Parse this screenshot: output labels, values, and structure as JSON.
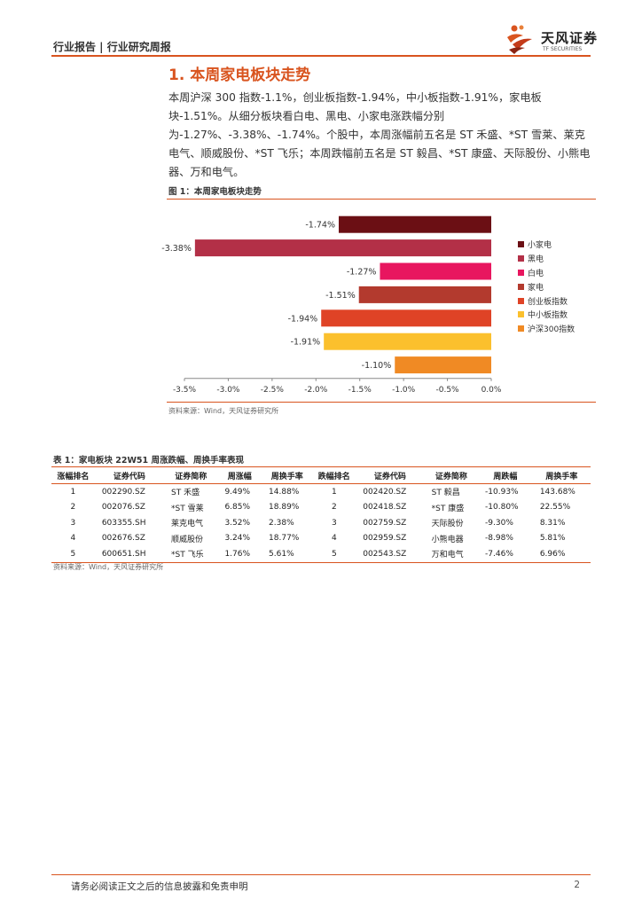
{
  "header": {
    "left_text": "行业报告 | 行业研究周报",
    "logo_cn": "天风证券",
    "logo_en": "TF SECURITIES"
  },
  "section": {
    "title": "1. 本周家电板块走势",
    "paragraph": "本周沪深 300 指数-1.1%，创业板指数-1.94%，中小板指数-1.91%，家电板块-1.51%。从细分板块看白电、黑电、小家电涨跌幅分别为-1.27%、-3.38%、-1.74%。个股中，本周涨幅前五名是 ST 禾盛、*ST 雪莱、莱克电气、顺威股份、*ST 飞乐；本周跌幅前五名是 ST 毅昌、*ST 康盛、天际股份、小熊电器、万和电气。"
  },
  "figure": {
    "title": "图 1：本周家电板块走势",
    "source": "资料来源：Wind，天风证券研究所"
  },
  "chart_data": {
    "type": "bar",
    "orientation": "horizontal",
    "categories": [
      "小家电",
      "黑电",
      "白电",
      "家电",
      "创业板指数",
      "中小板指数",
      "沪深300指数"
    ],
    "values": [
      -1.74,
      -3.38,
      -1.27,
      -1.51,
      -1.94,
      -1.91,
      -1.1
    ],
    "data_labels": [
      "-1.74%",
      "-3.38%",
      "-1.27%",
      "-1.51%",
      "-1.94%",
      "-1.91%",
      "-1.10%"
    ],
    "colors": [
      "#6b0f14",
      "#b33047",
      "#e8165f",
      "#b33a2e",
      "#df4326",
      "#fbc02d",
      "#f08a24"
    ],
    "xlim": [
      -3.5,
      0
    ],
    "x_ticks": [
      "-3.5%",
      "-3.0%",
      "-2.5%",
      "-2.0%",
      "-1.5%",
      "-1.0%",
      "-0.5%",
      "0.0%"
    ],
    "x_tick_values": [
      -3.5,
      -3.0,
      -2.5,
      -2.0,
      -1.5,
      -1.0,
      -0.5,
      0
    ],
    "legend_position": "right",
    "grid": false
  },
  "table": {
    "title": "表 1：家电板块 22W51 周涨跌幅、周换手率表现",
    "headers": [
      "涨幅排名",
      "证券代码",
      "证券简称",
      "周涨幅",
      "周换手率",
      "跌幅排名",
      "证券代码",
      "证券简称",
      "周跌幅",
      "周换手率"
    ],
    "rows": [
      [
        "1",
        "002290.SZ",
        "ST 禾盛",
        "9.49%",
        "14.88%",
        "1",
        "002420.SZ",
        "ST 毅昌",
        "-10.93%",
        "143.68%"
      ],
      [
        "2",
        "002076.SZ",
        "*ST 雪莱",
        "6.85%",
        "18.89%",
        "2",
        "002418.SZ",
        "*ST 康盛",
        "-10.80%",
        "22.55%"
      ],
      [
        "3",
        "603355.SH",
        "莱克电气",
        "3.52%",
        "2.38%",
        "3",
        "002759.SZ",
        "天际股份",
        "-9.30%",
        "8.31%"
      ],
      [
        "4",
        "002676.SZ",
        "顺威股份",
        "3.24%",
        "18.77%",
        "4",
        "002959.SZ",
        "小熊电器",
        "-8.98%",
        "5.81%"
      ],
      [
        "5",
        "600651.SH",
        "*ST 飞乐",
        "1.76%",
        "5.61%",
        "5",
        "002543.SZ",
        "万和电气",
        "-7.46%",
        "6.96%"
      ]
    ],
    "source": "资料来源：Wind，天风证券研究所"
  },
  "footer": {
    "disclaimer": "请务必阅读正文之后的信息披露和免责申明",
    "page": "2"
  },
  "colors": {
    "accent": "#d9541f"
  }
}
